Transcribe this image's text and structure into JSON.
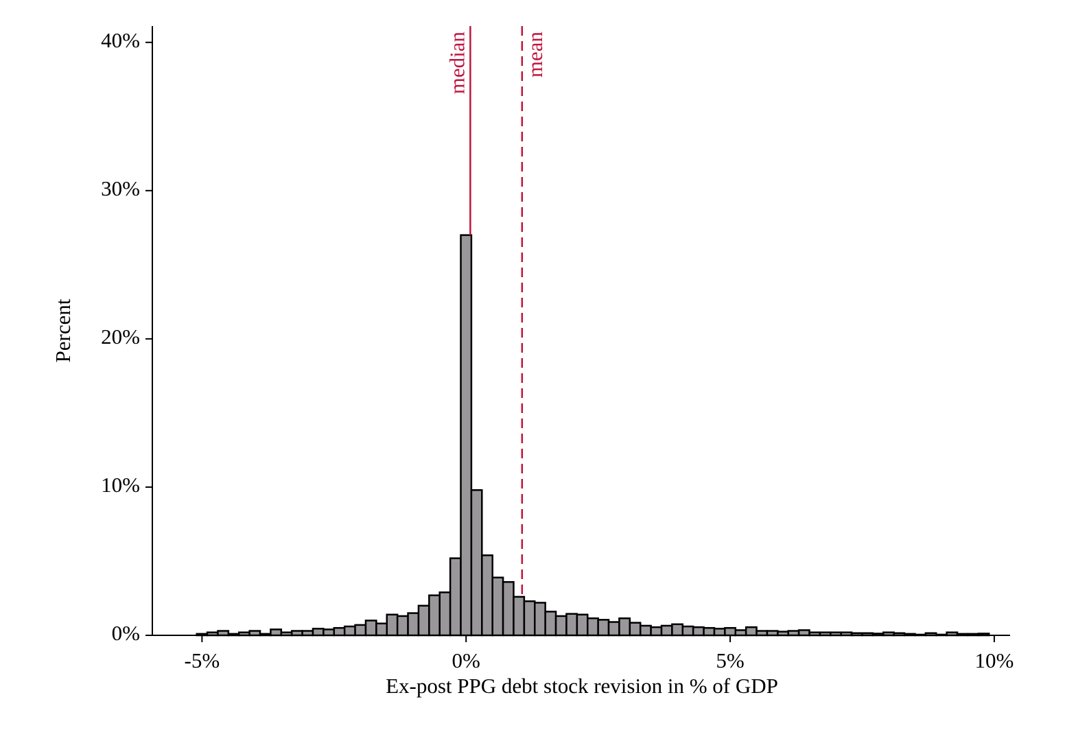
{
  "chart_data": {
    "type": "histogram",
    "x_label": "Ex-post PPG debt stock revision in % of GDP",
    "y_label": "Percent",
    "bins": [
      -5.1,
      -4.9,
      -4.7,
      -4.5,
      -4.3,
      -4.1,
      -3.9,
      -3.7,
      -3.5,
      -3.3,
      -3.1,
      -2.9,
      -2.7,
      -2.5,
      -2.3,
      -2.1,
      -1.9,
      -1.7,
      -1.5,
      -1.3,
      -1.1,
      -0.9,
      -0.7,
      -0.5,
      -0.3,
      -0.1,
      0.1,
      0.3,
      0.5,
      0.7,
      0.9,
      1.1,
      1.3,
      1.5,
      1.7,
      1.9,
      2.1,
      2.3,
      2.5,
      2.7,
      2.9,
      3.1,
      3.3,
      3.5,
      3.7,
      3.9,
      4.1,
      4.3,
      4.5,
      4.7,
      4.9,
      5.1,
      5.3,
      5.5,
      5.7,
      5.9,
      6.1,
      6.3,
      6.5,
      6.7,
      6.9,
      7.1,
      7.3,
      7.5,
      7.7,
      7.9,
      8.1,
      8.3,
      8.5,
      8.7,
      8.9,
      9.1,
      9.3,
      9.5,
      9.7,
      9.9
    ],
    "values": [
      0.1,
      0.2,
      0.3,
      0.1,
      0.2,
      0.3,
      0.1,
      0.4,
      0.2,
      0.3,
      0.3,
      0.45,
      0.4,
      0.5,
      0.6,
      0.7,
      1.0,
      0.8,
      1.4,
      1.3,
      1.5,
      2.0,
      2.7,
      2.9,
      5.2,
      27.0,
      9.8,
      5.4,
      3.9,
      3.6,
      2.6,
      2.3,
      2.2,
      1.6,
      1.3,
      1.45,
      1.4,
      1.15,
      1.05,
      0.9,
      1.15,
      0.85,
      0.65,
      0.55,
      0.65,
      0.75,
      0.6,
      0.55,
      0.5,
      0.45,
      0.5,
      0.35,
      0.55,
      0.3,
      0.3,
      0.25,
      0.3,
      0.35,
      0.2,
      0.2,
      0.2,
      0.2,
      0.15,
      0.15,
      0.12,
      0.2,
      0.15,
      0.1,
      0.05,
      0.15,
      0.05,
      0.2,
      0.1,
      0.1,
      0.12
    ],
    "color": "#9a979a",
    "edge_color": "#000000",
    "xlim": [
      -5.94,
      10.3
    ],
    "ylim": [
      0,
      41.1
    ],
    "xticks": [
      {
        "value": -5,
        "label": "-5%"
      },
      {
        "value": 0,
        "label": "0%"
      },
      {
        "value": 5,
        "label": "5%"
      },
      {
        "value": 10,
        "label": "10%"
      }
    ],
    "yticks": [
      {
        "value": 0,
        "label": "0%"
      },
      {
        "value": 10,
        "label": "10%"
      },
      {
        "value": 20,
        "label": "20%"
      },
      {
        "value": 30,
        "label": "30%"
      },
      {
        "value": 40,
        "label": "40%"
      }
    ],
    "reference_lines": [
      {
        "label": "median",
        "value": 0.08,
        "style": "solid",
        "color": "#c0143c"
      },
      {
        "label": "mean",
        "value": 1.06,
        "style": "dashed",
        "color": "#c0143c"
      }
    ]
  }
}
